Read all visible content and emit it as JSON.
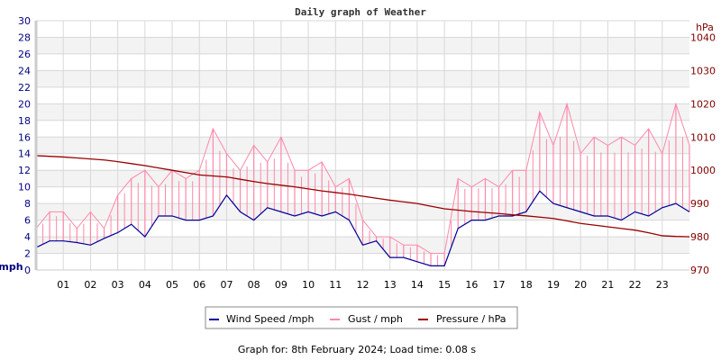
{
  "chart_data": {
    "type": "line",
    "title": "Daily graph of Weather",
    "left_axis": {
      "label": "mph",
      "range": [
        0,
        30
      ],
      "ticks": [
        0,
        2,
        4,
        6,
        8,
        10,
        12,
        14,
        16,
        18,
        20,
        22,
        24,
        26,
        28,
        30
      ]
    },
    "right_axis": {
      "label": "hPa",
      "range": [
        970,
        1045
      ],
      "ticks": [
        970,
        980,
        990,
        1000,
        1010,
        1020,
        1030,
        1040
      ]
    },
    "x_axis": {
      "range": [
        0,
        24
      ],
      "tick_labels": [
        "01",
        "02",
        "03",
        "04",
        "05",
        "06",
        "07",
        "08",
        "09",
        "10",
        "11",
        "12",
        "13",
        "14",
        "15",
        "16",
        "17",
        "18",
        "19",
        "20",
        "21",
        "22",
        "23"
      ]
    },
    "grid": true,
    "x_hours": [
      0,
      0.5,
      1,
      1.5,
      2,
      2.5,
      3,
      3.5,
      4,
      4.5,
      5,
      5.5,
      6,
      6.5,
      7,
      7.5,
      8,
      8.5,
      9,
      9.5,
      10,
      10.5,
      11,
      11.5,
      12,
      12.5,
      13,
      13.5,
      14,
      14.5,
      15,
      15.5,
      16,
      16.5,
      17,
      17.5,
      18,
      18.5,
      19,
      19.5,
      20,
      20.5,
      21,
      21.5,
      22,
      22.5,
      23,
      23.5,
      24
    ],
    "series": [
      {
        "name": "Wind Speed /mph",
        "axis": "left",
        "color": "#000099",
        "values": [
          2.7,
          3.5,
          3.5,
          3.3,
          3,
          3.8,
          4.5,
          5.5,
          4,
          6.5,
          6.5,
          6,
          6,
          6.5,
          9,
          7,
          6,
          7.5,
          7,
          6.5,
          7,
          6.5,
          7,
          6,
          3,
          3.5,
          1.5,
          1.5,
          1,
          0.5,
          0.5,
          5,
          6,
          6,
          6.5,
          6.5,
          7,
          9.5,
          8,
          7.5,
          7,
          6.5,
          6.5,
          6,
          7,
          6.5,
          7.5,
          8,
          7
        ]
      },
      {
        "name": "Gust / mph",
        "axis": "left",
        "color": "#ff88aa",
        "values": [
          5,
          7,
          7,
          5,
          7,
          5,
          9,
          11,
          12,
          10,
          12,
          11,
          12,
          17,
          14,
          12,
          15,
          13,
          16,
          12,
          12,
          13,
          10,
          11,
          6,
          4,
          4,
          3,
          3,
          2,
          2,
          11,
          10,
          11,
          10,
          12,
          12,
          19,
          15,
          20,
          14,
          16,
          15,
          16,
          15,
          17,
          14,
          20,
          15
        ]
      },
      {
        "name": "Pressure / hPa",
        "axis": "right",
        "color": "#990000",
        "values": [
          1004.4,
          1004.2,
          1004,
          1003.7,
          1003.4,
          1003.1,
          1002.6,
          1002,
          1001.4,
          1000.7,
          1000,
          999.3,
          998.6,
          998.3,
          998,
          997.3,
          996.6,
          996,
          995.5,
          995,
          994.4,
          993.8,
          993.3,
          992.8,
          992.2,
          991.6,
          991,
          990.5,
          990,
          989.2,
          988.4,
          988,
          987.6,
          987.3,
          987,
          986.6,
          986.3,
          985.9,
          985.5,
          984.8,
          984,
          983.5,
          983,
          982.5,
          982,
          981.2,
          980.3,
          980.1,
          980
        ]
      }
    ],
    "legend": {
      "placement": "bottom",
      "entries": [
        "Wind Speed /mph",
        "Gust / mph",
        "Pressure / hPa"
      ]
    }
  },
  "footer": "Graph for: 8th February 2024; Load time: 0.08 s"
}
